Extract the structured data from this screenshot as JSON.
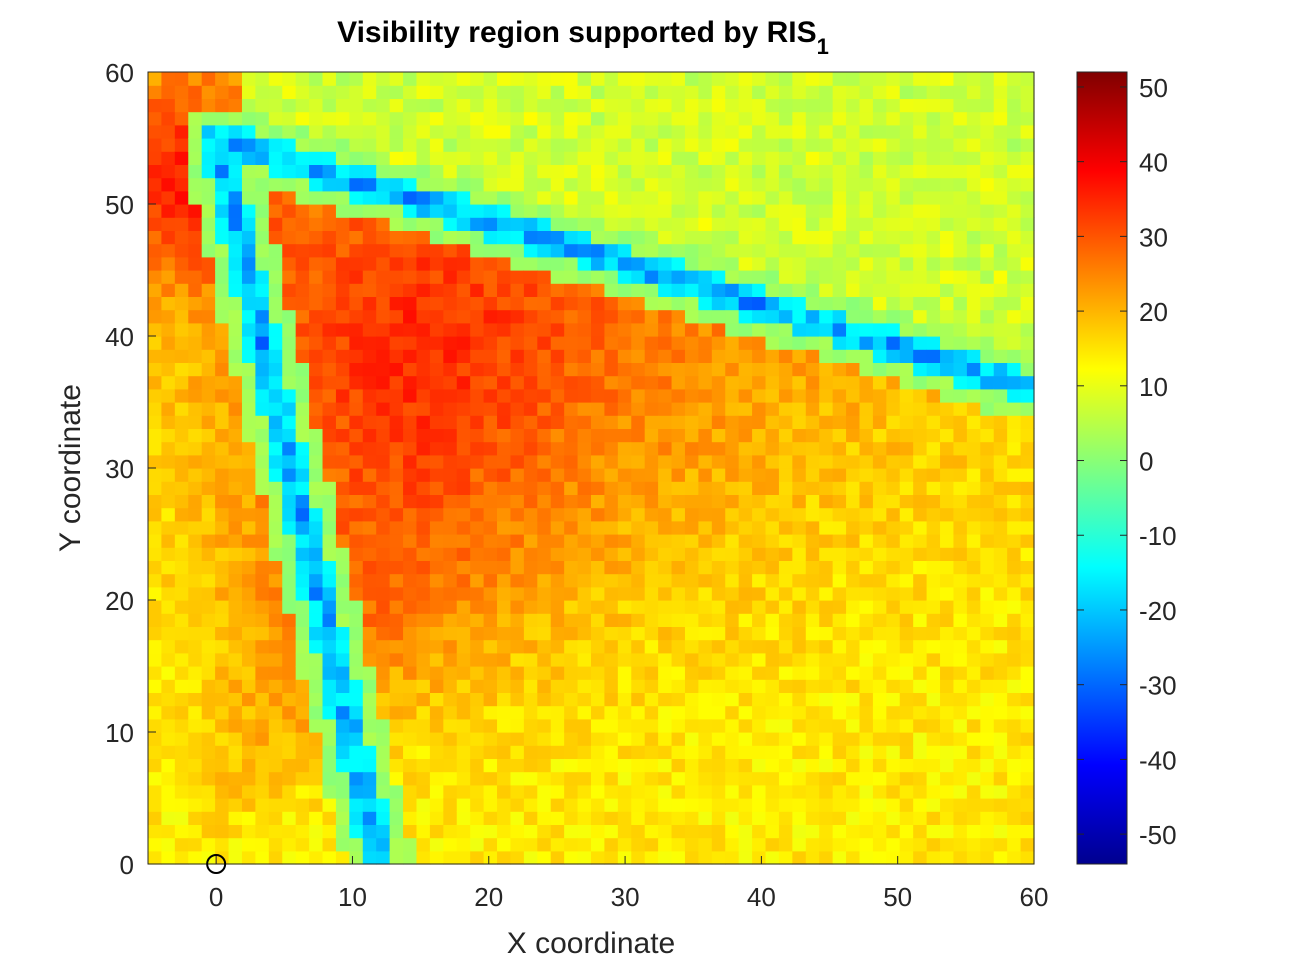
{
  "chart_data": {
    "type": "heatmap",
    "title": "Visibility region supported by RIS",
    "title_subscript": "1",
    "xlabel": "X coordinate",
    "ylabel": "Y coordinate",
    "xlim": [
      -5,
      60
    ],
    "ylim": [
      0,
      60
    ],
    "x_ticks": [
      0,
      10,
      20,
      30,
      40,
      50,
      60
    ],
    "y_ticks": [
      0,
      10,
      20,
      30,
      40,
      50,
      60
    ],
    "colorbar": {
      "colormap": "jet",
      "clim": [
        -54,
        52
      ],
      "ticks": [
        50,
        40,
        30,
        20,
        10,
        0,
        -10,
        -20,
        -30,
        -40,
        -50
      ]
    },
    "grid": false,
    "markers": [
      {
        "label": "RIS1 position",
        "shape": "circle",
        "x": 0,
        "y": 0
      }
    ],
    "color_bar_colors": [
      "#00008f",
      "#0000ff",
      "#00ffff",
      "#ffff00",
      "#ff0000",
      "#800000"
    ],
    "value_model": {
      "description": "Approximate received gain field: strong lobe toward upper-left, two null lines from RIS",
      "null_lines": [
        {
          "from": [
            12,
            0
          ],
          "to": [
            0,
            55
          ]
        },
        {
          "from": [
            0,
            55
          ],
          "to": [
            60,
            36
          ]
        }
      ]
    }
  }
}
